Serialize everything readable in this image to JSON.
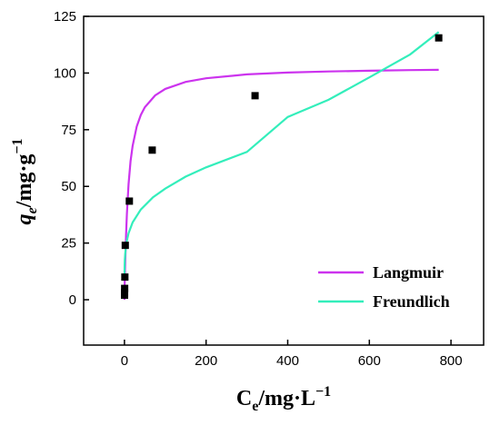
{
  "chart_data": {
    "type": "scatter",
    "title": "",
    "xlabel": "C_e/mg·L^-1",
    "ylabel": "q_e/mg·g^-1",
    "xlabel_parts": {
      "main": "C",
      "sub": "e",
      "unit": "/mg·L",
      "sup": "−1"
    },
    "ylabel_parts": {
      "main": "q",
      "sub": "e",
      "unit": "/mg·g",
      "sup": "−1"
    },
    "xlim": [
      -100,
      880
    ],
    "ylim": [
      -20,
      125
    ],
    "xticks": [
      0,
      200,
      400,
      600,
      800
    ],
    "yticks": [
      0,
      25,
      50,
      75,
      100,
      125
    ],
    "grid": false,
    "legend_position": "bottom-right",
    "series": [
      {
        "name": "",
        "kind": "points",
        "color": "#000000",
        "x": [
          0.2,
          0.3,
          0.5,
          1,
          2,
          12,
          68,
          320,
          770
        ],
        "y": [
          2,
          3,
          5,
          10,
          24,
          43.5,
          66,
          90,
          115.5
        ]
      },
      {
        "name": "Langmuir",
        "kind": "line",
        "color": "#cc33ee",
        "x": [
          0,
          1,
          2,
          4,
          6,
          10,
          15,
          20,
          30,
          40,
          50,
          75,
          100,
          150,
          200,
          300,
          400,
          500,
          600,
          700,
          770
        ],
        "y": [
          0,
          9.3,
          17,
          29,
          38,
          50.9,
          61.1,
          67.9,
          76.4,
          81.5,
          84.9,
          90.1,
          93,
          96.1,
          97.7,
          99.4,
          100.2,
          100.7,
          101,
          101.3,
          101.4
        ]
      },
      {
        "name": "Freundlich",
        "kind": "line",
        "color": "#33eebb",
        "x": [
          0.05,
          0.2,
          0.5,
          1,
          2,
          5,
          10,
          20,
          40,
          70,
          100,
          150,
          200,
          300,
          400,
          500,
          600,
          700,
          770
        ],
        "y": [
          9,
          12.4,
          15.2,
          17.7,
          20.6,
          25.2,
          29.3,
          34.1,
          39.8,
          45.2,
          49,
          54.3,
          58.4,
          65.2,
          80.6,
          88.2,
          98.1,
          108.2,
          118.1
        ]
      }
    ]
  }
}
